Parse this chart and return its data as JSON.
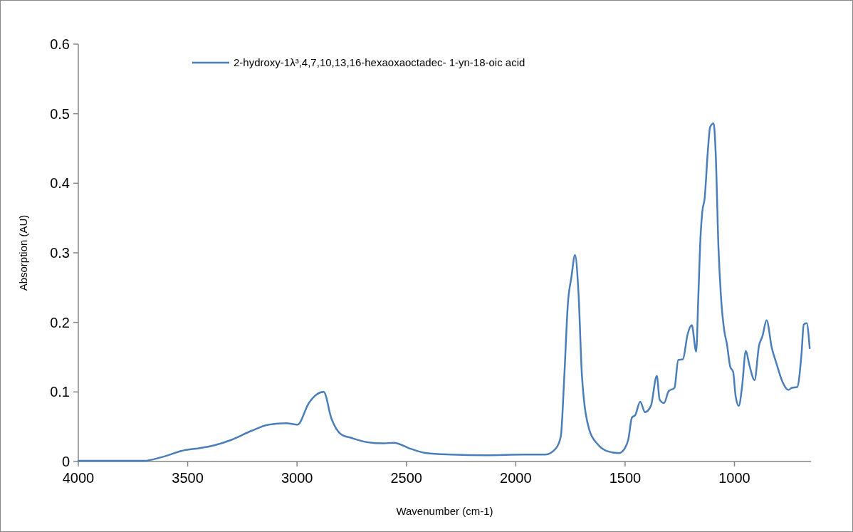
{
  "chart_data": {
    "type": "line",
    "xlabel": "Wavenumber (cm-1)",
    "ylabel": "Absorption (AU)",
    "xlim": [
      4000,
      650
    ],
    "xticks": [
      4000,
      3500,
      3000,
      2500,
      2000,
      1500,
      1000
    ],
    "ylim": [
      0,
      0.6
    ],
    "yticks": [
      0,
      0.1,
      0.2,
      0.3,
      0.4,
      0.5,
      0.6
    ],
    "grid": false,
    "legend": "top",
    "marker": "none",
    "line_style": "solid",
    "series": [
      {
        "name": "2-hydroxy-1λ³,4,7,10,13,16-hexaoxaoctadec- 1-yn-18-oic acid",
        "color": "#4a7ebb",
        "x": [
          4000,
          3700,
          3621,
          3518,
          3449,
          3381,
          3301,
          3209,
          3129,
          3049,
          2998,
          2946,
          2912,
          2878,
          2843,
          2798,
          2752,
          2683,
          2603,
          2558,
          2478,
          2407,
          2298,
          2135,
          1962,
          1865,
          1816,
          1794,
          1778,
          1762,
          1745,
          1729,
          1713,
          1697,
          1664,
          1626,
          1583,
          1528,
          1501,
          1485,
          1469,
          1453,
          1431,
          1409,
          1382,
          1355,
          1342,
          1322,
          1301,
          1274,
          1257,
          1236,
          1214,
          1195,
          1175,
          1165,
          1155,
          1147,
          1136,
          1122,
          1111,
          1095,
          1086,
          1073,
          1062,
          1046,
          1035,
          1019,
          1006,
          995,
          980,
          965,
          948,
          932,
          908,
          888,
          872,
          853,
          829,
          808,
          781,
          753,
          737,
          713,
          694,
          683,
          670,
          656
        ],
        "values": [
          0.001,
          0.001,
          0.006,
          0.016,
          0.019,
          0.023,
          0.031,
          0.044,
          0.053,
          0.055,
          0.053,
          0.084,
          0.096,
          0.1,
          0.062,
          0.039,
          0.034,
          0.028,
          0.026,
          0.027,
          0.018,
          0.012,
          0.01,
          0.009,
          0.01,
          0.01,
          0.019,
          0.036,
          0.122,
          0.225,
          0.266,
          0.297,
          0.242,
          0.122,
          0.046,
          0.025,
          0.015,
          0.012,
          0.019,
          0.032,
          0.063,
          0.067,
          0.086,
          0.071,
          0.08,
          0.123,
          0.089,
          0.084,
          0.101,
          0.106,
          0.146,
          0.147,
          0.183,
          0.196,
          0.158,
          0.238,
          0.324,
          0.359,
          0.379,
          0.445,
          0.481,
          0.486,
          0.445,
          0.307,
          0.239,
          0.187,
          0.17,
          0.136,
          0.129,
          0.095,
          0.08,
          0.108,
          0.159,
          0.139,
          0.117,
          0.166,
          0.18,
          0.203,
          0.163,
          0.141,
          0.115,
          0.103,
          0.106,
          0.107,
          0.152,
          0.197,
          0.199,
          0.163
        ]
      }
    ]
  }
}
